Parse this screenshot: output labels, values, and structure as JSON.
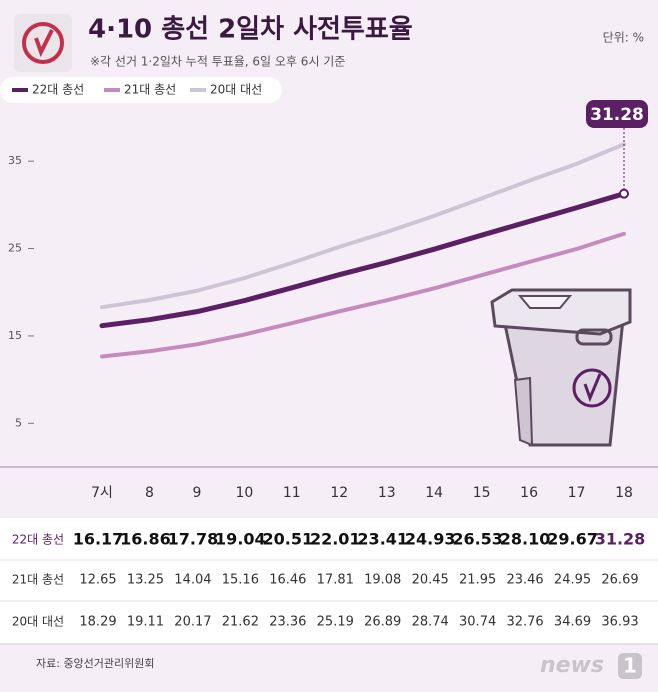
{
  "chart_data": {
    "type": "line",
    "title": "4·10 총선 2일차 사전투표율",
    "subtitle": "※각 선거 1·2일차 누적 투표율, 6일 오후 6시 기준",
    "unit": "단위: %",
    "categories": [
      "7시",
      "8",
      "9",
      "10",
      "11",
      "12",
      "13",
      "14",
      "15",
      "16",
      "17",
      "18"
    ],
    "series": [
      {
        "name": "22대 총선",
        "color": "#5b1f63",
        "values": [
          16.17,
          16.86,
          17.78,
          19.04,
          20.51,
          22.01,
          23.41,
          24.93,
          26.53,
          28.1,
          29.67,
          31.28
        ],
        "value_labels": [
          "16.17",
          "16.86",
          "17.78",
          "19.04",
          "20.51",
          "22.01",
          "23.41",
          "24.93",
          "26.53",
          "28.10",
          "29.67",
          "31.28"
        ]
      },
      {
        "name": "21대 총선",
        "color": "#c58bbd",
        "values": [
          12.65,
          13.25,
          14.04,
          15.16,
          16.46,
          17.81,
          19.08,
          20.45,
          21.95,
          23.46,
          24.95,
          26.69
        ]
      },
      {
        "name": "20대 대선",
        "color": "#cdc4d6",
        "values": [
          18.29,
          19.11,
          20.17,
          21.62,
          23.36,
          25.19,
          26.89,
          28.74,
          30.74,
          32.76,
          34.69,
          36.93
        ]
      }
    ],
    "ylim": [
      0,
      42
    ],
    "yticks": [
      5,
      15,
      25,
      35
    ],
    "source": "자료: 중앙선거관리위원회",
    "logo": {
      "text": "news",
      "mark": "1"
    }
  }
}
